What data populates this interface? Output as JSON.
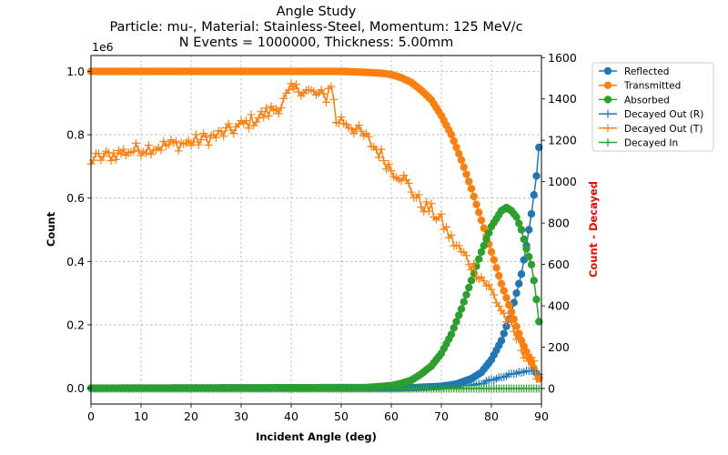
{
  "chart_data": {
    "type": "line",
    "title_lines": [
      "Angle Study",
      "Particle: mu-, Material: Stainless-Steel, Momentum: 125 MeV/c",
      "N Events = 1000000, Thickness: 5.00mm"
    ],
    "xlabel": "Incident Angle (deg)",
    "ylabel": "Count",
    "ylabel_right": "Count - Decayed",
    "ylabel_right_color": "#ff0000",
    "left_axis_multiplier": "1e6",
    "xlim": [
      0,
      90
    ],
    "ylim": [
      -0.05,
      1.05
    ],
    "ylim_right": [
      -75,
      1610
    ],
    "xticks": [
      0,
      10,
      20,
      30,
      40,
      50,
      60,
      70,
      80,
      90
    ],
    "xtick_labels": [
      "0",
      "10",
      "20",
      "30",
      "40",
      "50",
      "60",
      "70",
      "80",
      "90"
    ],
    "yticks": [
      0.0,
      0.2,
      0.4,
      0.6,
      0.8,
      1.0
    ],
    "ytick_labels": [
      "0.0",
      "0.2",
      "0.4",
      "0.6",
      "0.8",
      "1.0"
    ],
    "yticks_right": [
      0,
      200,
      400,
      600,
      800,
      1000,
      1200,
      1400,
      1600
    ],
    "ytick_labels_right": [
      "0",
      "200",
      "400",
      "600",
      "800",
      "1000",
      "1200",
      "1400",
      "1600"
    ],
    "grid": true,
    "legend_position": "outside-right-top",
    "x_step": 0.5,
    "series": [
      {
        "name": "Reflected",
        "axis": "left",
        "marker": "circle",
        "color": "#1f77b4",
        "keypoints": [
          [
            0,
            0.0
          ],
          [
            60,
            0.0
          ],
          [
            65,
            0.002
          ],
          [
            70,
            0.006
          ],
          [
            73,
            0.013
          ],
          [
            76,
            0.03
          ],
          [
            78,
            0.05
          ],
          [
            80,
            0.09
          ],
          [
            82,
            0.15
          ],
          [
            84,
            0.24
          ],
          [
            86,
            0.36
          ],
          [
            87,
            0.45
          ],
          [
            88,
            0.55
          ],
          [
            89,
            0.67
          ],
          [
            89.5,
            0.76
          ]
        ]
      },
      {
        "name": "Transmitted",
        "axis": "left",
        "marker": "circle",
        "color": "#ff7f0e",
        "keypoints": [
          [
            0,
            1.0
          ],
          [
            50,
            1.0
          ],
          [
            55,
            0.997
          ],
          [
            58,
            0.994
          ],
          [
            60,
            0.99
          ],
          [
            62,
            0.98
          ],
          [
            64,
            0.965
          ],
          [
            66,
            0.94
          ],
          [
            68,
            0.91
          ],
          [
            70,
            0.86
          ],
          [
            72,
            0.8
          ],
          [
            74,
            0.72
          ],
          [
            76,
            0.63
          ],
          [
            78,
            0.53
          ],
          [
            80,
            0.43
          ],
          [
            82,
            0.33
          ],
          [
            84,
            0.24
          ],
          [
            86,
            0.15
          ],
          [
            88,
            0.08
          ],
          [
            89.5,
            0.03
          ]
        ]
      },
      {
        "name": "Absorbed",
        "axis": "left",
        "marker": "circle",
        "color": "#2ca02c",
        "keypoints": [
          [
            0,
            0.0
          ],
          [
            55,
            0.002
          ],
          [
            60,
            0.008
          ],
          [
            62,
            0.015
          ],
          [
            64,
            0.025
          ],
          [
            66,
            0.045
          ],
          [
            68,
            0.07
          ],
          [
            70,
            0.11
          ],
          [
            72,
            0.17
          ],
          [
            74,
            0.25
          ],
          [
            76,
            0.34
          ],
          [
            78,
            0.43
          ],
          [
            80,
            0.51
          ],
          [
            82,
            0.56
          ],
          [
            83,
            0.57
          ],
          [
            84,
            0.56
          ],
          [
            85,
            0.54
          ],
          [
            86,
            0.5
          ],
          [
            87,
            0.44
          ],
          [
            88,
            0.39
          ],
          [
            88.5,
            0.34
          ],
          [
            89,
            0.28
          ],
          [
            89.5,
            0.21
          ]
        ]
      },
      {
        "name": "Decayed Out (R)",
        "axis": "right",
        "marker": "plus",
        "color": "#1f77b4",
        "keypoints": [
          [
            0,
            0
          ],
          [
            60,
            0
          ],
          [
            70,
            3
          ],
          [
            75,
            12
          ],
          [
            78,
            25
          ],
          [
            80,
            40
          ],
          [
            82,
            55
          ],
          [
            84,
            68
          ],
          [
            86,
            80
          ],
          [
            87,
            88
          ],
          [
            88,
            85
          ],
          [
            89,
            72
          ],
          [
            89.5,
            65
          ]
        ]
      },
      {
        "name": "Decayed Out (T)",
        "axis": "right",
        "marker": "plus",
        "color": "#ff7f0e",
        "keypoints": [
          [
            0,
            1105
          ],
          [
            5,
            1135
          ],
          [
            10,
            1160
          ],
          [
            15,
            1175
          ],
          [
            20,
            1190
          ],
          [
            25,
            1220
          ],
          [
            30,
            1270
          ],
          [
            35,
            1330
          ],
          [
            38,
            1370
          ],
          [
            40,
            1440
          ],
          [
            42,
            1450
          ],
          [
            45,
            1420
          ],
          [
            47,
            1410
          ],
          [
            48,
            1480
          ],
          [
            49,
            1290
          ],
          [
            50,
            1300
          ],
          [
            52,
            1270
          ],
          [
            55,
            1210
          ],
          [
            58,
            1130
          ],
          [
            60,
            1060
          ],
          [
            62,
            1030
          ],
          [
            64,
            960
          ],
          [
            66,
            890
          ],
          [
            68,
            860
          ],
          [
            70,
            810
          ],
          [
            72,
            720
          ],
          [
            74,
            660
          ],
          [
            76,
            600
          ],
          [
            78,
            540
          ],
          [
            80,
            470
          ],
          [
            82,
            380
          ],
          [
            84,
            290
          ],
          [
            86,
            200
          ],
          [
            88,
            120
          ],
          [
            89.5,
            60
          ]
        ]
      },
      {
        "name": "Decayed In",
        "axis": "right",
        "marker": "plus",
        "color": "#2ca02c",
        "keypoints": [
          [
            0,
            0
          ],
          [
            89.5,
            0
          ]
        ]
      }
    ]
  }
}
